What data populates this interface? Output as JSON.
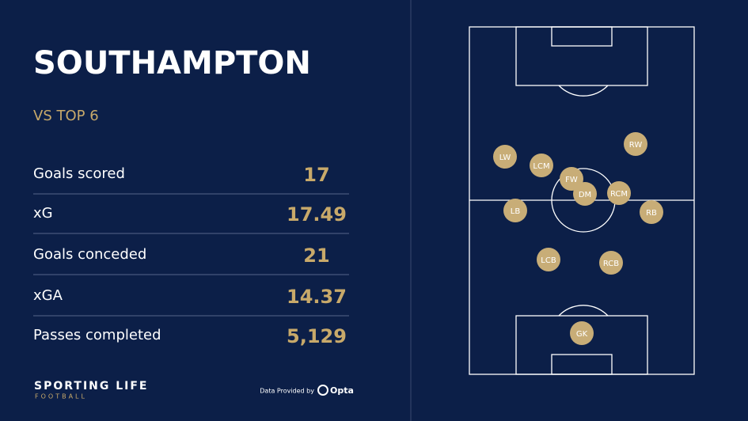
{
  "header": {
    "title": "SOUTHAMPTON",
    "subtitle": "VS TOP 6"
  },
  "stats": [
    {
      "label": "Goals scored",
      "value": "17"
    },
    {
      "label": "xG",
      "value": "17.49"
    },
    {
      "label": "Goals conceded",
      "value": "21"
    },
    {
      "label": "xGA",
      "value": "14.37"
    },
    {
      "label": "Passes completed",
      "value": "5,129"
    }
  ],
  "players": [
    "LW",
    "LCM",
    "FW",
    "DM",
    "RCM",
    "RW",
    "LB",
    "RB",
    "LCB",
    "RCB",
    "GK"
  ],
  "footer": {
    "brand": "SPORTING LIFE",
    "sub_brand": "FOOTBALL",
    "credit": "Data Provided by",
    "provider": "Opta"
  }
}
